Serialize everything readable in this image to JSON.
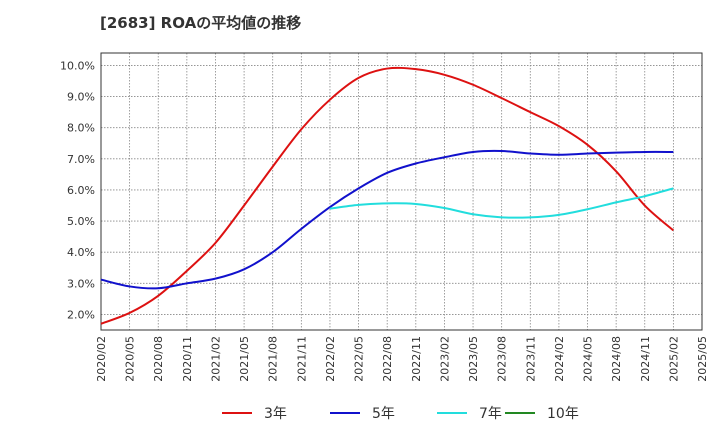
{
  "chart_data": {
    "type": "line",
    "title": "[2683]  ROAの平均値の推移",
    "xlabel": "",
    "ylabel": "",
    "ylim": [
      1.5,
      10.4
    ],
    "y_ticks": [
      "2.0%",
      "3.0%",
      "4.0%",
      "5.0%",
      "6.0%",
      "7.0%",
      "8.0%",
      "9.0%",
      "10.0%"
    ],
    "y_tick_values": [
      2,
      3,
      4,
      5,
      6,
      7,
      8,
      9,
      10
    ],
    "x_ticks": [
      "2020/02",
      "2020/05",
      "2020/08",
      "2020/11",
      "2021/02",
      "2021/05",
      "2021/08",
      "2021/11",
      "2022/02",
      "2022/05",
      "2022/08",
      "2022/11",
      "2023/02",
      "2023/05",
      "2023/08",
      "2023/11",
      "2024/02",
      "2024/05",
      "2024/08",
      "2024/11",
      "2025/02",
      "2025/05"
    ],
    "grid": true,
    "legend_position": "bottom",
    "series": [
      {
        "name": "3年",
        "color": "#dd1111",
        "points": [
          [
            "2020/02",
            1.7
          ],
          [
            "2020/05",
            2.05
          ],
          [
            "2020/08",
            2.6
          ],
          [
            "2020/11",
            3.4
          ],
          [
            "2021/02",
            4.3
          ],
          [
            "2021/05",
            5.5
          ],
          [
            "2021/08",
            6.75
          ],
          [
            "2021/11",
            7.95
          ],
          [
            "2022/02",
            8.9
          ],
          [
            "2022/05",
            9.6
          ],
          [
            "2022/08",
            9.9
          ],
          [
            "2022/11",
            9.88
          ],
          [
            "2023/02",
            9.7
          ],
          [
            "2023/05",
            9.38
          ],
          [
            "2023/08",
            8.95
          ],
          [
            "2023/11",
            8.5
          ],
          [
            "2024/02",
            8.05
          ],
          [
            "2024/05",
            7.45
          ],
          [
            "2024/08",
            6.6
          ],
          [
            "2024/11",
            5.5
          ],
          [
            "2025/02",
            4.7
          ]
        ]
      },
      {
        "name": "5年",
        "color": "#1111cc",
        "points": [
          [
            "2020/02",
            3.12
          ],
          [
            "2020/05",
            2.9
          ],
          [
            "2020/08",
            2.84
          ],
          [
            "2020/11",
            3.0
          ],
          [
            "2021/02",
            3.15
          ],
          [
            "2021/05",
            3.45
          ],
          [
            "2021/08",
            4.0
          ],
          [
            "2021/11",
            4.75
          ],
          [
            "2022/02",
            5.45
          ],
          [
            "2022/05",
            6.05
          ],
          [
            "2022/08",
            6.55
          ],
          [
            "2022/11",
            6.85
          ],
          [
            "2023/02",
            7.05
          ],
          [
            "2023/05",
            7.22
          ],
          [
            "2023/08",
            7.25
          ],
          [
            "2023/11",
            7.17
          ],
          [
            "2024/02",
            7.13
          ],
          [
            "2024/05",
            7.17
          ],
          [
            "2024/08",
            7.2
          ],
          [
            "2024/11",
            7.22
          ],
          [
            "2025/02",
            7.22
          ]
        ]
      },
      {
        "name": "7年",
        "color": "#22dddd",
        "points": [
          [
            "2022/02",
            5.4
          ],
          [
            "2022/05",
            5.52
          ],
          [
            "2022/08",
            5.57
          ],
          [
            "2022/11",
            5.55
          ],
          [
            "2023/02",
            5.42
          ],
          [
            "2023/05",
            5.22
          ],
          [
            "2023/08",
            5.12
          ],
          [
            "2023/11",
            5.12
          ],
          [
            "2024/02",
            5.2
          ],
          [
            "2024/05",
            5.38
          ],
          [
            "2024/08",
            5.6
          ],
          [
            "2024/11",
            5.8
          ],
          [
            "2025/02",
            6.05
          ]
        ]
      },
      {
        "name": "10年",
        "color": "#228822",
        "points": []
      }
    ]
  }
}
